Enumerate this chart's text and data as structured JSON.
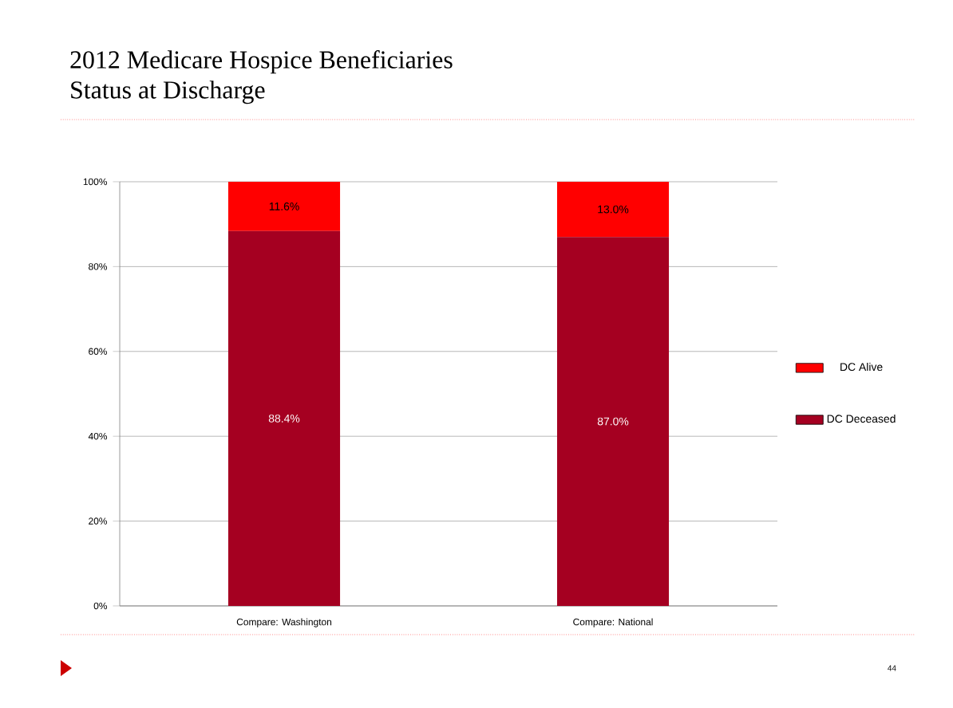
{
  "chart_data": {
    "type": "bar",
    "stacked": true,
    "title": "2012 Medicare Hospice Beneficiaries",
    "subtitle": "Status at Discharge",
    "categories": [
      "Compare: Washington",
      "Compare: National"
    ],
    "series": [
      {
        "name": "DC Deceased",
        "color": "#a50021",
        "values": [
          88.4,
          87.0
        ],
        "value_labels": [
          "88.4%",
          "87.0%"
        ]
      },
      {
        "name": "DC Alive",
        "color": "#ff0000",
        "values": [
          11.6,
          13.0
        ],
        "value_labels": [
          "11.6%",
          "13.0%"
        ]
      }
    ],
    "ylim": [
      0,
      100
    ],
    "yticks": [
      {
        "value": 0,
        "label": "0%"
      },
      {
        "value": 20,
        "label": "20%"
      },
      {
        "value": 40,
        "label": "40%"
      },
      {
        "value": 60,
        "label": "60%"
      },
      {
        "value": 80,
        "label": "80%"
      },
      {
        "value": 100,
        "label": "100%"
      }
    ],
    "grid": "y",
    "legend": "right",
    "annotations": [
      "44"
    ]
  }
}
